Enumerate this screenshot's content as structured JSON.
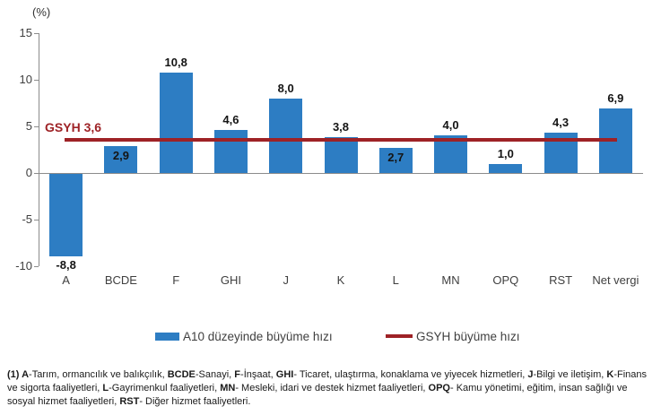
{
  "chart_data": {
    "type": "bar",
    "title": "",
    "xlabel": "",
    "ylabel": "(%)",
    "categories": [
      "A",
      "BCDE",
      "F",
      "GHI",
      "J",
      "K",
      "L",
      "MN",
      "OPQ",
      "RST",
      "Net vergi"
    ],
    "values": [
      -8.8,
      2.9,
      10.8,
      4.6,
      8.0,
      3.8,
      2.7,
      4.0,
      1.0,
      4.3,
      6.9
    ],
    "value_labels": [
      "-8,8",
      "2,9",
      "10,8",
      "4,6",
      "8,0",
      "3,8",
      "2,7",
      "4,0",
      "1,0",
      "4,3",
      "6,9"
    ],
    "value_label_positions": [
      "below",
      "inside",
      "above",
      "above",
      "above",
      "above",
      "inside",
      "above",
      "above",
      "above",
      "above"
    ],
    "ylim": [
      -10,
      15
    ],
    "yticks": [
      15,
      10,
      5,
      0,
      -5,
      -10
    ],
    "ytick_labels": [
      "15",
      "10",
      "5",
      "0",
      "-5",
      "-10"
    ],
    "grid": "off",
    "bar_color": "#2d7dc3",
    "ref_line": {
      "value": 3.6,
      "label": "GSYH 3,6",
      "color": "#9e2226"
    },
    "legend": {
      "position": "bottom",
      "items": [
        {
          "label": "A10 düzeyinde büyüme hızı",
          "marker": "bar",
          "color": "#2d7dc3"
        },
        {
          "label": "GSYH büyüme hızı",
          "marker": "line",
          "color": "#9e2226"
        }
      ]
    }
  },
  "footnote": {
    "segments": [
      {
        "text": "(1) A",
        "bold": true
      },
      {
        "text": "-Tarım, ormancılık ve balıkçılık, ",
        "bold": false
      },
      {
        "text": "BCDE",
        "bold": true
      },
      {
        "text": "-Sanayi, ",
        "bold": false
      },
      {
        "text": "F",
        "bold": true
      },
      {
        "text": "-İnşaat, ",
        "bold": false
      },
      {
        "text": "GHI",
        "bold": true
      },
      {
        "text": "- Ticaret, ulaştırma, konaklama ve yiyecek hizmetleri, ",
        "bold": false
      },
      {
        "text": "J",
        "bold": true
      },
      {
        "text": "-Bilgi ve iletişim, ",
        "bold": false
      },
      {
        "text": "K",
        "bold": true
      },
      {
        "text": "-Finans ve sigorta faaliyetleri, ",
        "bold": false
      },
      {
        "text": "L",
        "bold": true
      },
      {
        "text": "-Gayrimenkul faaliyetleri, ",
        "bold": false
      },
      {
        "text": "MN",
        "bold": true
      },
      {
        "text": "- Mesleki, idari ve destek hizmet faaliyetleri, ",
        "bold": false
      },
      {
        "text": "OPQ",
        "bold": true
      },
      {
        "text": "- Kamu yönetimi, eğitim, insan sağlığı ve sosyal hizmet faaliyetleri, ",
        "bold": false
      },
      {
        "text": "RST",
        "bold": true
      },
      {
        "text": "- Diğer hizmet faaliyetleri.",
        "bold": false
      }
    ]
  }
}
